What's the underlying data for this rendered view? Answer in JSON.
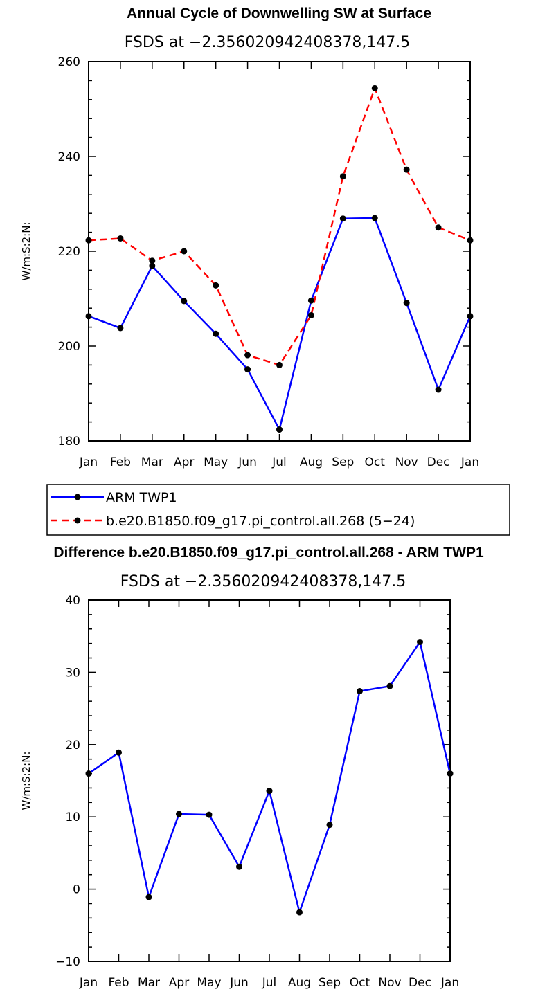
{
  "chart_data": [
    {
      "type": "line",
      "title": "Annual Cycle of Downwelling SW at Surface",
      "subtitle": "FSDS at −2.356020942408378,147.5",
      "ylabel": "W/m:S:2:N:",
      "ylim": [
        180,
        260
      ],
      "yticks": [
        "180",
        "200",
        "220",
        "240",
        "260"
      ],
      "categories": [
        "Jan",
        "Feb",
        "Mar",
        "Apr",
        "May",
        "Jun",
        "Jul",
        "Aug",
        "Sep",
        "Oct",
        "Nov",
        "Dec",
        "Jan"
      ],
      "series": [
        {
          "name": "ARM TWP1",
          "color": "#0000ff",
          "dash": "solid",
          "values": [
            206.3,
            203.8,
            216.9,
            209.5,
            202.6,
            195.1,
            182.4,
            209.6,
            226.9,
            227.0,
            209.1,
            190.8,
            206.3
          ]
        },
        {
          "name": "b.e20.B1850.f09_g17.pi_control.all.268 (5−24)",
          "color": "#ff0000",
          "dash": "dashed",
          "values": [
            222.3,
            222.7,
            218.0,
            220.0,
            212.8,
            198.1,
            196.0,
            206.5,
            235.8,
            254.4,
            237.2,
            225.0,
            222.3
          ]
        }
      ]
    },
    {
      "type": "line",
      "title": "Difference b.e20.B1850.f09_g17.pi_control.all.268 - ARM TWP1",
      "subtitle": "FSDS at −2.356020942408378,147.5",
      "ylabel": "W/m:S:2:N:",
      "ylim": [
        -10,
        40
      ],
      "yticks": [
        "−10",
        "0",
        "10",
        "20",
        "30",
        "40"
      ],
      "categories": [
        "Jan",
        "Feb",
        "Mar",
        "Apr",
        "May",
        "Jun",
        "Jul",
        "Aug",
        "Sep",
        "Oct",
        "Nov",
        "Dec",
        "Jan"
      ],
      "series": [
        {
          "name": "Difference",
          "color": "#0000ff",
          "dash": "solid",
          "values": [
            16.0,
            18.9,
            -1.1,
            10.4,
            10.3,
            3.1,
            13.6,
            -3.2,
            8.9,
            27.4,
            28.1,
            34.2,
            16.0
          ]
        }
      ]
    }
  ]
}
